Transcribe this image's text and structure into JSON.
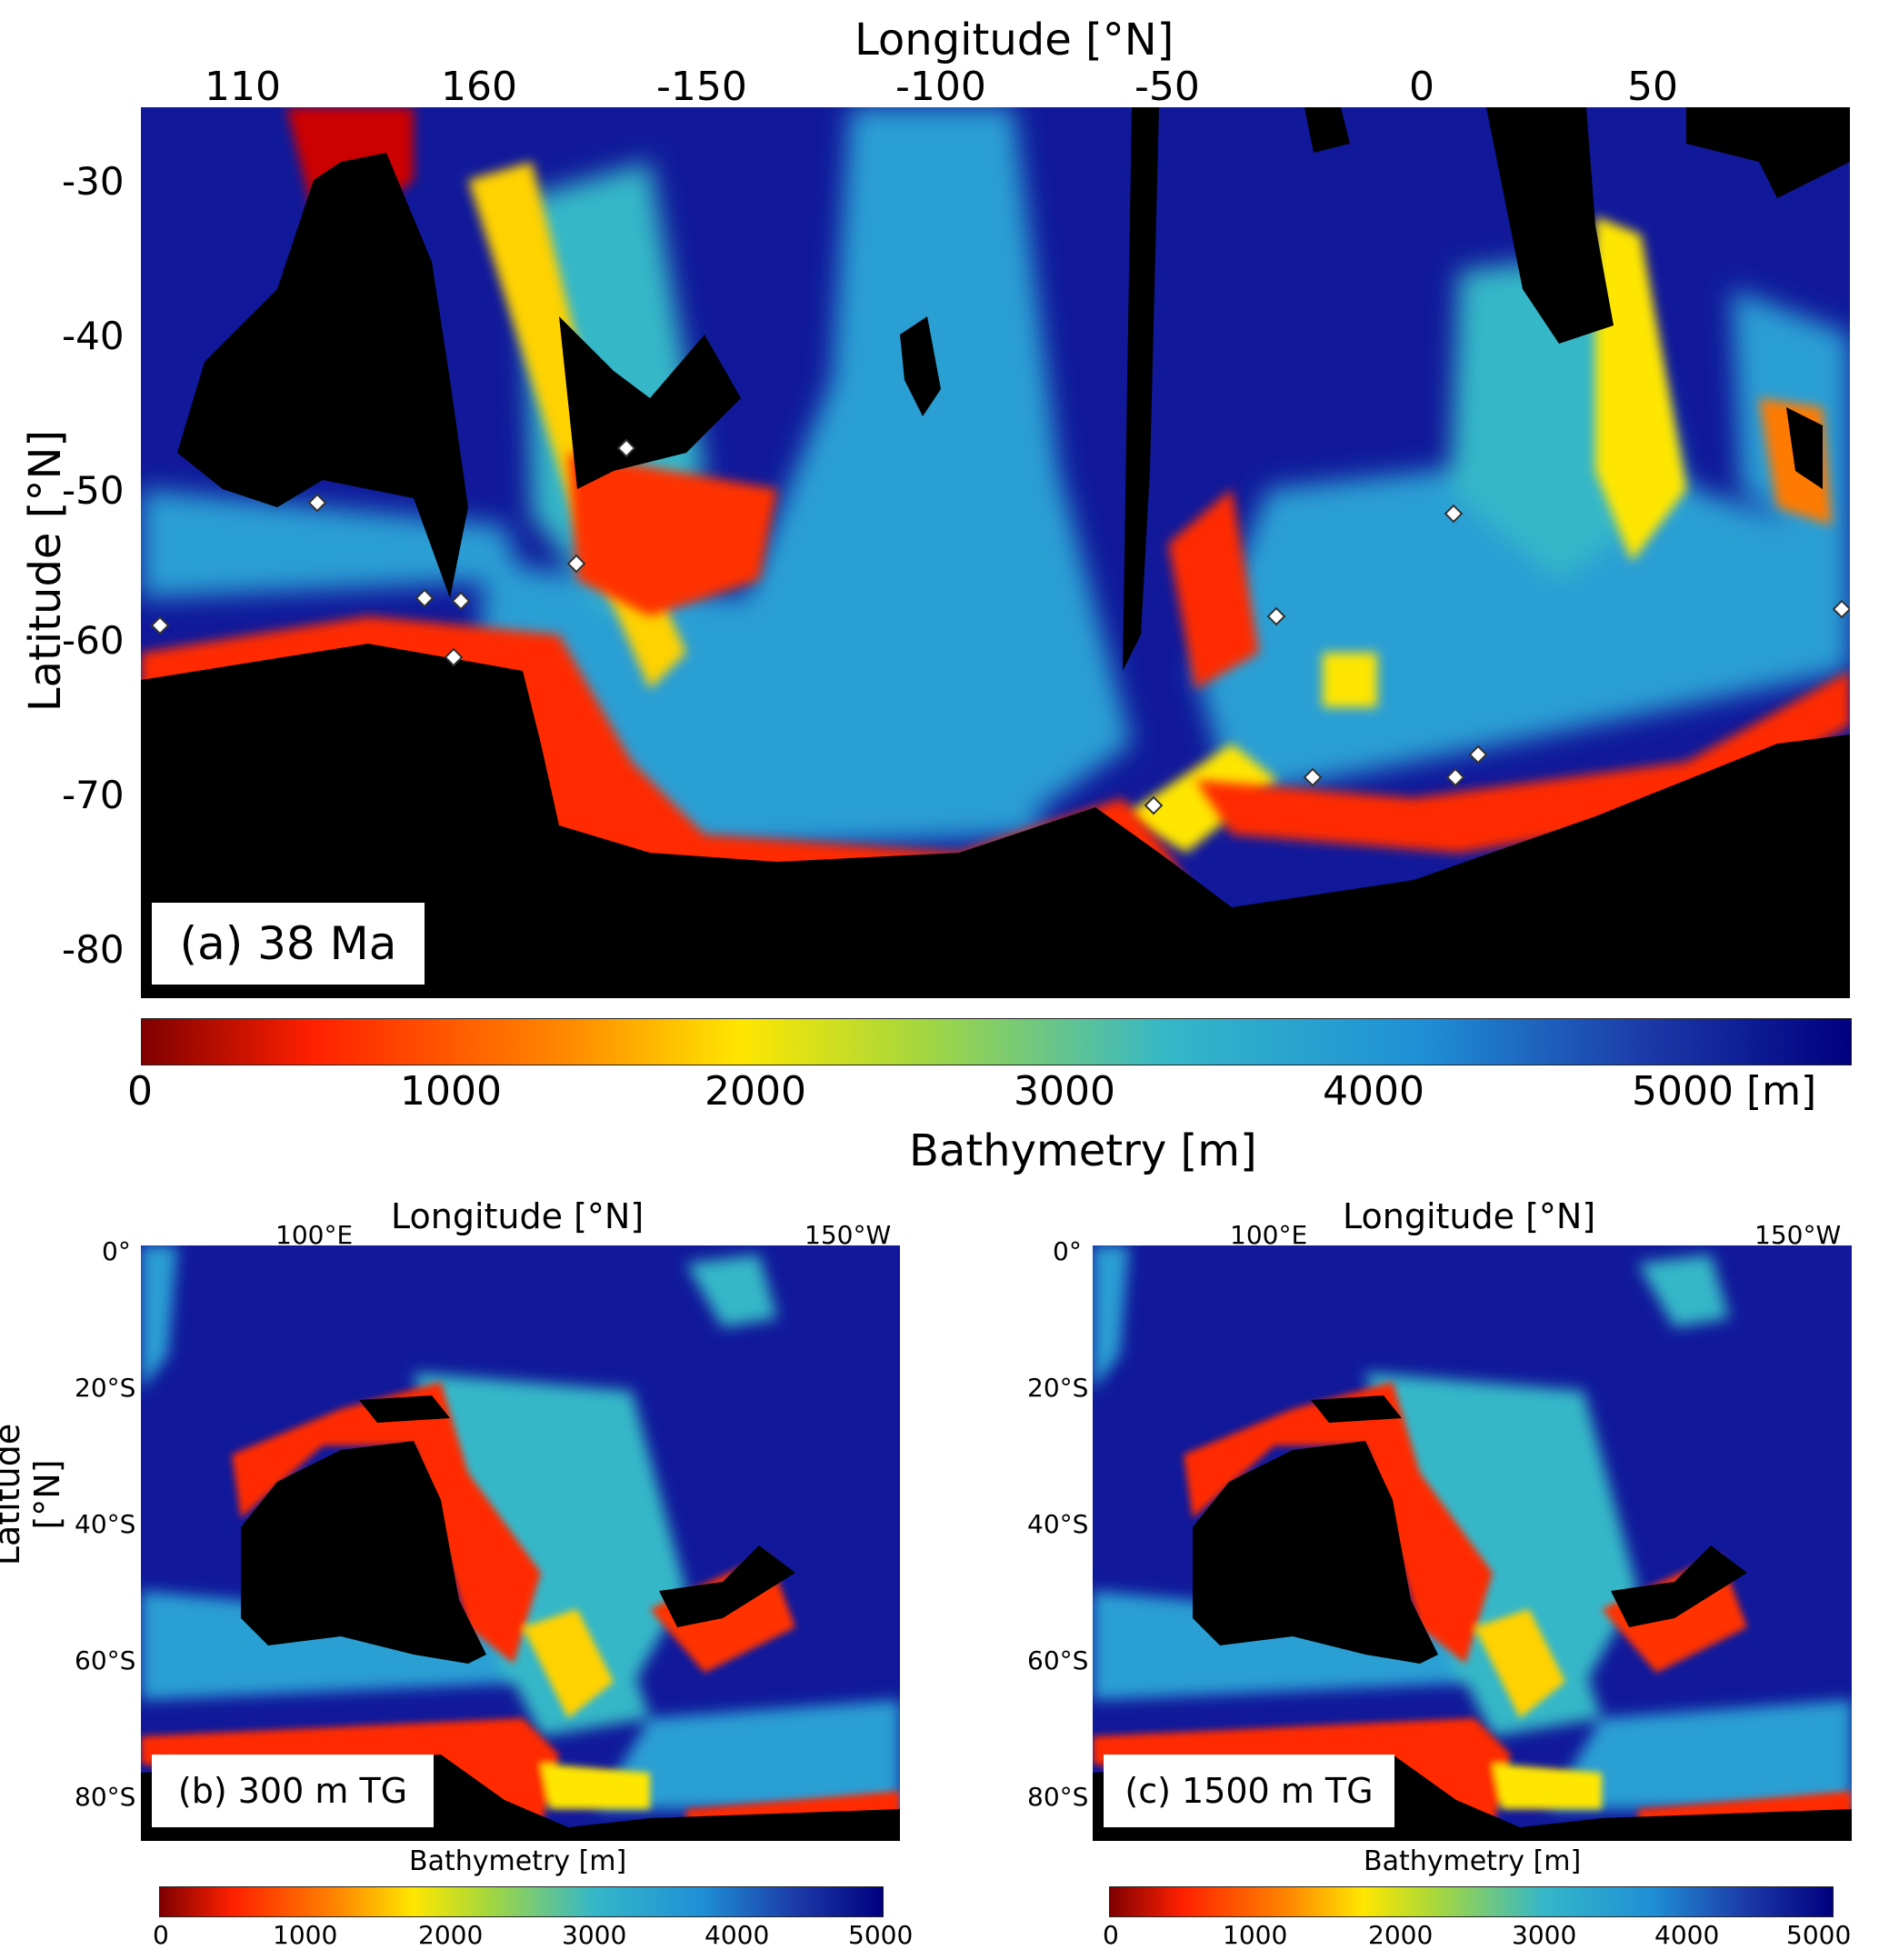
{
  "panel_a": {
    "panel_label": "(a) 38 Ma",
    "xlabel": "Longitude [°N]",
    "ylabel": "Latitude [°N]",
    "x_ticks": [
      "110",
      "160",
      "-150",
      "-100",
      "-50",
      "0",
      "50"
    ],
    "y_ticks": [
      "-30",
      "-40",
      "-50",
      "-60",
      "-70",
      "-80"
    ],
    "colorbar": {
      "label": "Bathymetry [m]",
      "ticks": [
        "0",
        "1000",
        "2000",
        "3000",
        "4000",
        "5000 [m]"
      ],
      "range": [
        0,
        5000
      ]
    }
  },
  "panel_b": {
    "panel_label": "(b) 300 m TG",
    "xlabel": "Longitude [°N]",
    "ylabel": "Latitude [°N]",
    "x_ticks": [
      "100°E",
      "150°W"
    ],
    "y_ticks": [
      "0°",
      "20°S",
      "40°S",
      "60°S",
      "80°S"
    ],
    "colorbar": {
      "label": "Bathymetry [m]",
      "ticks": [
        "0",
        "1000",
        "2000",
        "3000",
        "4000",
        "5000"
      ]
    }
  },
  "panel_c": {
    "panel_label": "(c) 1500 m TG",
    "xlabel": "Longitude [°N]",
    "x_ticks": [
      "100°E",
      "150°W"
    ],
    "y_ticks": [
      "0°",
      "20°S",
      "40°S",
      "60°S",
      "80°S"
    ],
    "colorbar": {
      "label": "Bathymetry [m]",
      "ticks": [
        "0",
        "1000",
        "2000",
        "3000",
        "4000",
        "5000"
      ]
    }
  },
  "colormap": [
    "#7f0000",
    "#ff2000",
    "#ff8a00",
    "#ffe600",
    "#a8d83a",
    "#35b7c8",
    "#1f8fd6",
    "#1c3aa8",
    "#00007f"
  ],
  "land_color": "#000000"
}
